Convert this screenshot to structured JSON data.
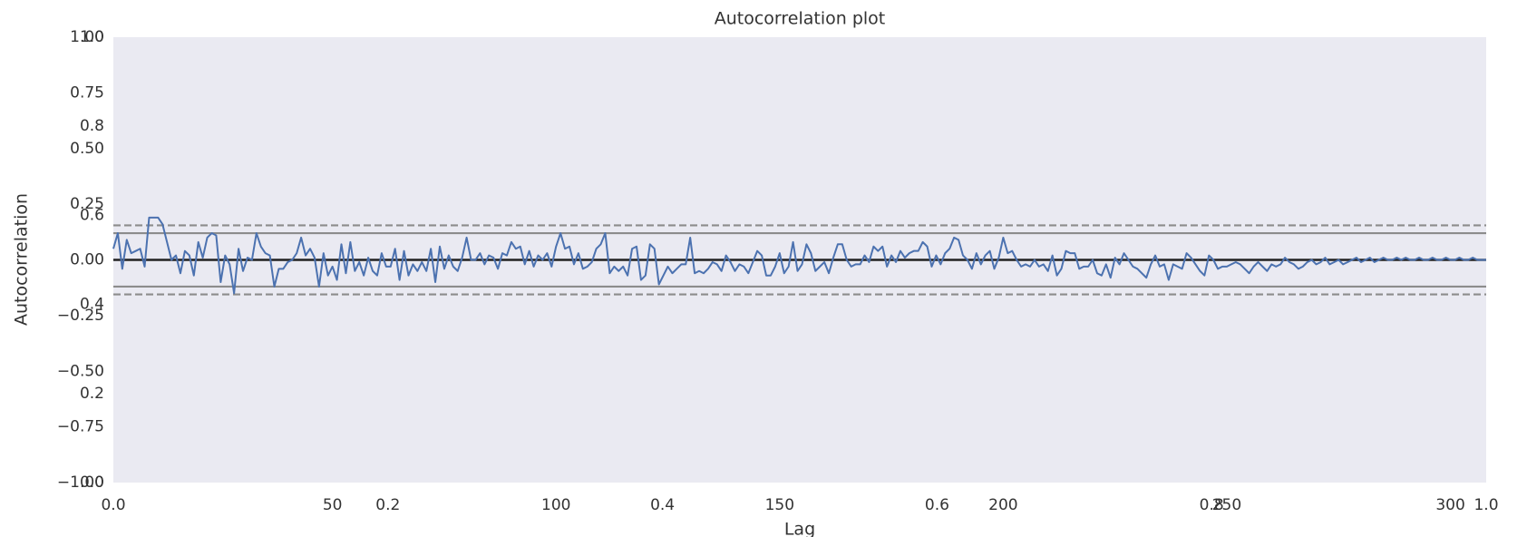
{
  "chart_data": {
    "type": "line",
    "title": "Autocorrelation plot",
    "xlabel": "Lag",
    "ylabel": "Autocorrelation",
    "color": "#4c72b0",
    "background": "#eaeaf2",
    "grid": false,
    "xlim": [
      1,
      308
    ],
    "ylim": [
      -1,
      1
    ],
    "xticks": [
      50,
      100,
      150,
      200,
      250,
      300
    ],
    "yticks": [
      {
        "value": -1,
        "label": "−1.00"
      },
      {
        "value": -0.75,
        "label": "−0.75"
      },
      {
        "value": -0.5,
        "label": "−0.50"
      },
      {
        "value": -0.25,
        "label": "−0.25"
      },
      {
        "value": 0,
        "label": "0.00"
      },
      {
        "value": 0.25,
        "label": "0.25"
      },
      {
        "value": 0.5,
        "label": "0.50"
      },
      {
        "value": 0.75,
        "label": "0.75"
      },
      {
        "value": 1,
        "label": "1.00"
      }
    ],
    "reference_lines": [
      {
        "value": 0.155,
        "color": "#8c8c8c",
        "dashed": true
      },
      {
        "value": 0.12,
        "color": "#8c8c8c",
        "dashed": false
      },
      {
        "value": 0,
        "color": "#222222",
        "dashed": false
      },
      {
        "value": -0.12,
        "color": "#8c8c8c",
        "dashed": false
      },
      {
        "value": -0.155,
        "color": "#8c8c8c",
        "dashed": true
      }
    ],
    "overlay_axes": {
      "xlim": [
        0,
        1
      ],
      "ylim": [
        0,
        1
      ],
      "xticks": [
        {
          "value": 0,
          "label": "0.0"
        },
        0.2,
        0.4,
        0.6,
        0.8,
        {
          "value": 1,
          "label": "1.0"
        }
      ],
      "yticks": [
        {
          "value": 0,
          "label": "0.0"
        },
        0.2,
        0.4,
        0.6,
        0.8,
        {
          "value": 1,
          "label": "1.0"
        }
      ]
    },
    "x": [
      1,
      2,
      3,
      4,
      5,
      6,
      7,
      8,
      9,
      10,
      11,
      12,
      13,
      14,
      15,
      16,
      17,
      18,
      19,
      20,
      21,
      22,
      23,
      24,
      25,
      26,
      27,
      28,
      29,
      30,
      31,
      32,
      33,
      34,
      35,
      36,
      37,
      38,
      39,
      40,
      41,
      42,
      43,
      44,
      45,
      46,
      47,
      48,
      49,
      50,
      51,
      52,
      53,
      54,
      55,
      56,
      57,
      58,
      59,
      60,
      61,
      62,
      63,
      64,
      65,
      66,
      67,
      68,
      69,
      70,
      71,
      72,
      73,
      74,
      75,
      76,
      77,
      78,
      79,
      80,
      81,
      82,
      83,
      84,
      85,
      86,
      87,
      88,
      89,
      90,
      91,
      92,
      93,
      94,
      95,
      96,
      97,
      98,
      99,
      100,
      101,
      102,
      103,
      104,
      105,
      106,
      107,
      108,
      109,
      110,
      111,
      112,
      113,
      114,
      115,
      116,
      117,
      118,
      119,
      120,
      121,
      122,
      123,
      124,
      125,
      126,
      127,
      128,
      129,
      130,
      131,
      132,
      133,
      134,
      135,
      136,
      137,
      138,
      139,
      140,
      141,
      142,
      143,
      144,
      145,
      146,
      147,
      148,
      149,
      150,
      151,
      152,
      153,
      154,
      155,
      156,
      157,
      158,
      159,
      160,
      161,
      162,
      163,
      164,
      165,
      166,
      167,
      168,
      169,
      170,
      171,
      172,
      173,
      174,
      175,
      176,
      177,
      178,
      179,
      180,
      181,
      182,
      183,
      184,
      185,
      186,
      187,
      188,
      189,
      190,
      191,
      192,
      193,
      194,
      195,
      196,
      197,
      198,
      199,
      200,
      201,
      202,
      203,
      204,
      205,
      206,
      207,
      208,
      209,
      210,
      211,
      212,
      213,
      214,
      215,
      216,
      217,
      218,
      219,
      220,
      221,
      222,
      223,
      224,
      225,
      226,
      227,
      228,
      229,
      230,
      231,
      232,
      233,
      234,
      235,
      236,
      237,
      238,
      239,
      240,
      241,
      242,
      243,
      244,
      245,
      246,
      247,
      248,
      249,
      250,
      251,
      252,
      253,
      254,
      255,
      256,
      257,
      258,
      259,
      260,
      261,
      262,
      263,
      264,
      265,
      266,
      267,
      268,
      269,
      270,
      271,
      272,
      273,
      274,
      275,
      276,
      277,
      278,
      279,
      280,
      281,
      282,
      283,
      284,
      285,
      286,
      287,
      288,
      289,
      290,
      291,
      292,
      293,
      294,
      295,
      296,
      297,
      298,
      299,
      300,
      301,
      302,
      303,
      304,
      305,
      306,
      307,
      308
    ],
    "values": [
      0.05,
      0.12,
      -0.04,
      0.09,
      0.03,
      0.04,
      0.05,
      -0.03,
      0.19,
      0.19,
      0.19,
      0.16,
      0.08,
      0.0,
      0.02,
      -0.06,
      0.04,
      0.02,
      -0.07,
      0.08,
      0.01,
      0.1,
      0.12,
      0.11,
      -0.1,
      0.02,
      -0.02,
      -0.15,
      0.05,
      -0.05,
      0.01,
      0.0,
      0.12,
      0.06,
      0.03,
      0.02,
      -0.12,
      -0.04,
      -0.04,
      -0.01,
      0.0,
      0.03,
      0.1,
      0.02,
      0.05,
      0.01,
      -0.12,
      0.03,
      -0.07,
      -0.03,
      -0.09,
      0.07,
      -0.06,
      0.08,
      -0.05,
      -0.01,
      -0.07,
      0.01,
      -0.05,
      -0.07,
      0.03,
      -0.03,
      -0.03,
      0.05,
      -0.09,
      0.04,
      -0.07,
      -0.02,
      -0.05,
      -0.01,
      -0.05,
      0.05,
      -0.1,
      0.06,
      -0.04,
      0.02,
      -0.03,
      -0.05,
      0.01,
      0.1,
      0.0,
      0.0,
      0.03,
      -0.02,
      0.02,
      0.01,
      -0.04,
      0.03,
      0.02,
      0.08,
      0.05,
      0.06,
      -0.02,
      0.04,
      -0.03,
      0.02,
      0.0,
      0.03,
      -0.03,
      0.06,
      0.12,
      0.05,
      0.06,
      -0.02,
      0.03,
      -0.04,
      -0.03,
      -0.01,
      0.05,
      0.07,
      0.12,
      -0.06,
      -0.03,
      -0.05,
      -0.03,
      -0.07,
      0.05,
      0.06,
      -0.09,
      -0.07,
      0.07,
      0.05,
      -0.11,
      -0.07,
      -0.03,
      -0.06,
      -0.04,
      -0.02,
      -0.02,
      0.1,
      -0.06,
      -0.05,
      -0.06,
      -0.04,
      -0.01,
      -0.02,
      -0.05,
      0.02,
      -0.01,
      -0.05,
      -0.02,
      -0.03,
      -0.06,
      -0.01,
      0.04,
      0.02,
      -0.07,
      -0.07,
      -0.03,
      0.03,
      -0.06,
      -0.03,
      0.08,
      -0.05,
      -0.02,
      0.07,
      0.03,
      -0.05,
      -0.03,
      -0.01,
      -0.06,
      0.01,
      0.07,
      0.07,
      0.0,
      -0.03,
      -0.02,
      -0.02,
      0.02,
      -0.01,
      0.06,
      0.04,
      0.06,
      -0.03,
      0.02,
      -0.01,
      0.04,
      0.01,
      0.03,
      0.04,
      0.04,
      0.08,
      0.06,
      -0.03,
      0.02,
      -0.02,
      0.03,
      0.05,
      0.1,
      0.09,
      0.02,
      0.0,
      -0.04,
      0.03,
      -0.02,
      0.02,
      0.04,
      -0.04,
      0.01,
      0.1,
      0.03,
      0.04,
      0.0,
      -0.03,
      -0.02,
      -0.03,
      0.0,
      -0.03,
      -0.02,
      -0.05,
      0.02,
      -0.07,
      -0.04,
      0.04,
      0.03,
      0.03,
      -0.04,
      -0.03,
      -0.03,
      0.0,
      -0.06,
      -0.07,
      -0.02,
      -0.08,
      0.01,
      -0.02,
      0.03,
      0.0,
      -0.03,
      -0.04,
      -0.06,
      -0.08,
      -0.02,
      0.02,
      -0.03,
      -0.02,
      -0.09,
      -0.02,
      -0.03,
      -0.04,
      0.03,
      0.01,
      -0.02,
      -0.05,
      -0.07,
      0.02,
      0.0,
      -0.04,
      -0.03,
      -0.03,
      -0.02,
      -0.01,
      -0.02,
      -0.04,
      -0.06,
      -0.03,
      -0.01,
      -0.03,
      -0.05,
      -0.02,
      -0.03,
      -0.02,
      0.01,
      -0.01,
      -0.02,
      -0.04,
      -0.03,
      -0.01,
      0.0,
      -0.02,
      -0.01,
      0.01,
      -0.02,
      -0.01,
      0.0,
      -0.02,
      -0.01,
      0.0,
      0.01,
      -0.01,
      0.0,
      0.01,
      -0.01,
      0.0,
      0.01,
      0.0,
      0.0,
      0.01,
      0.0,
      0.01,
      0.0,
      0.0,
      0.01,
      0.0,
      0.0,
      0.01,
      0.0,
      0.0,
      0.01,
      0.0,
      0.0,
      0.01,
      0.0,
      0.0,
      0.01,
      0.0,
      0.0,
      0.0
    ]
  }
}
